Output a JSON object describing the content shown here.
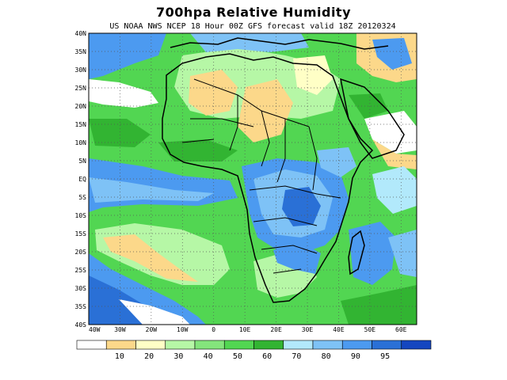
{
  "title": "700hpa Relative Humidity",
  "subtitle": "US NOAA NWS NCEP 18 Hour 00Z GFS forecast valid 18Z 20120324",
  "lat_labels": [
    "40N",
    "35N",
    "30N",
    "25N",
    "20N",
    "15N",
    "10N",
    "5N",
    "EQ",
    "5S",
    "10S",
    "15S",
    "20S",
    "25S",
    "30S",
    "35S",
    "40S"
  ],
  "lon_labels": [
    "40W",
    "30W",
    "20W",
    "10W",
    "0",
    "10E",
    "20E",
    "30E",
    "40E",
    "50E",
    "60E"
  ],
  "legend": {
    "colors": [
      "#ffffff",
      "#fcd88a",
      "#ffffc6",
      "#b6f7a6",
      "#84e57c",
      "#52d652",
      "#32b432",
      "#b2e9fb",
      "#7ec2f6",
      "#4c9af0",
      "#2a70d6",
      "#1446c0"
    ],
    "labels": [
      "10",
      "20",
      "30",
      "40",
      "50",
      "60",
      "70",
      "80",
      "90",
      "95"
    ]
  },
  "map_colors": {
    "blue_dark": "#1446c0",
    "blue": "#2a70d6",
    "blue_mid": "#4c9af0",
    "blue_light": "#7ec2f6",
    "green_dark": "#32b432",
    "green": "#52d652",
    "green_light": "#84e57c",
    "green_pale": "#b6f7a6",
    "yellow": "#fcd88a",
    "cream": "#ffffc6",
    "white": "#ffffff"
  }
}
